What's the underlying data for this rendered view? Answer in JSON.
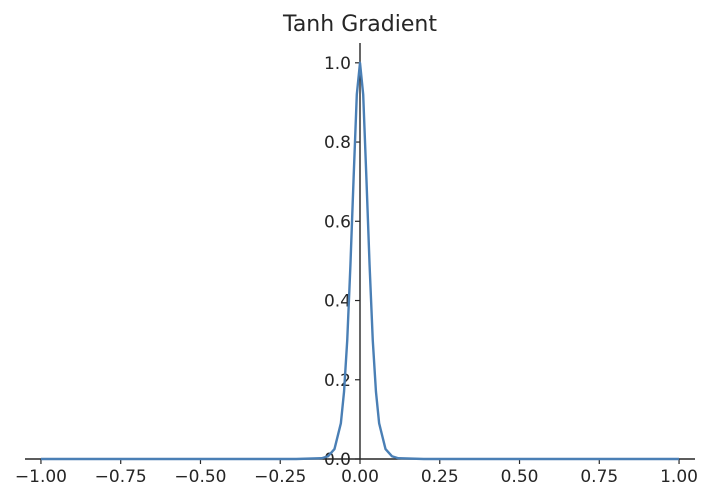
{
  "chart_data": {
    "type": "line",
    "title": "Tanh Gradient",
    "xlabel": "",
    "ylabel": "",
    "xlim": [
      -1.05,
      1.05
    ],
    "ylim": [
      0,
      1.05
    ],
    "x_ticks": [
      -1.0,
      -0.75,
      -0.5,
      -0.25,
      0.0,
      0.25,
      0.5,
      0.75,
      1.0
    ],
    "x_tick_labels": [
      "−1.00",
      "−0.75",
      "−0.50",
      "−0.25",
      "0.00",
      "0.25",
      "0.50",
      "0.75",
      "1.00"
    ],
    "y_ticks": [
      0.0,
      0.2,
      0.4,
      0.6,
      0.8,
      1.0
    ],
    "y_tick_labels": [
      "0.0",
      "0.2",
      "0.4",
      "0.6",
      "0.8",
      "1.0"
    ],
    "grid": false,
    "spines": "centered",
    "series": [
      {
        "color": "#4a7fb5",
        "x": [
          -1.0,
          -0.5,
          -0.2,
          -0.12,
          -0.1,
          -0.08,
          -0.06,
          -0.05,
          -0.04,
          -0.03,
          -0.02,
          -0.01,
          0.0,
          0.01,
          0.02,
          0.03,
          0.04,
          0.05,
          0.06,
          0.08,
          0.1,
          0.12,
          0.2,
          0.5,
          1.0
        ],
        "y": [
          0.0,
          0.0,
          0.0,
          0.002,
          0.007,
          0.025,
          0.09,
          0.17,
          0.3,
          0.49,
          0.71,
          0.92,
          1.0,
          0.92,
          0.71,
          0.49,
          0.3,
          0.17,
          0.09,
          0.025,
          0.007,
          0.002,
          0.0,
          0.0,
          0.0
        ]
      }
    ]
  }
}
